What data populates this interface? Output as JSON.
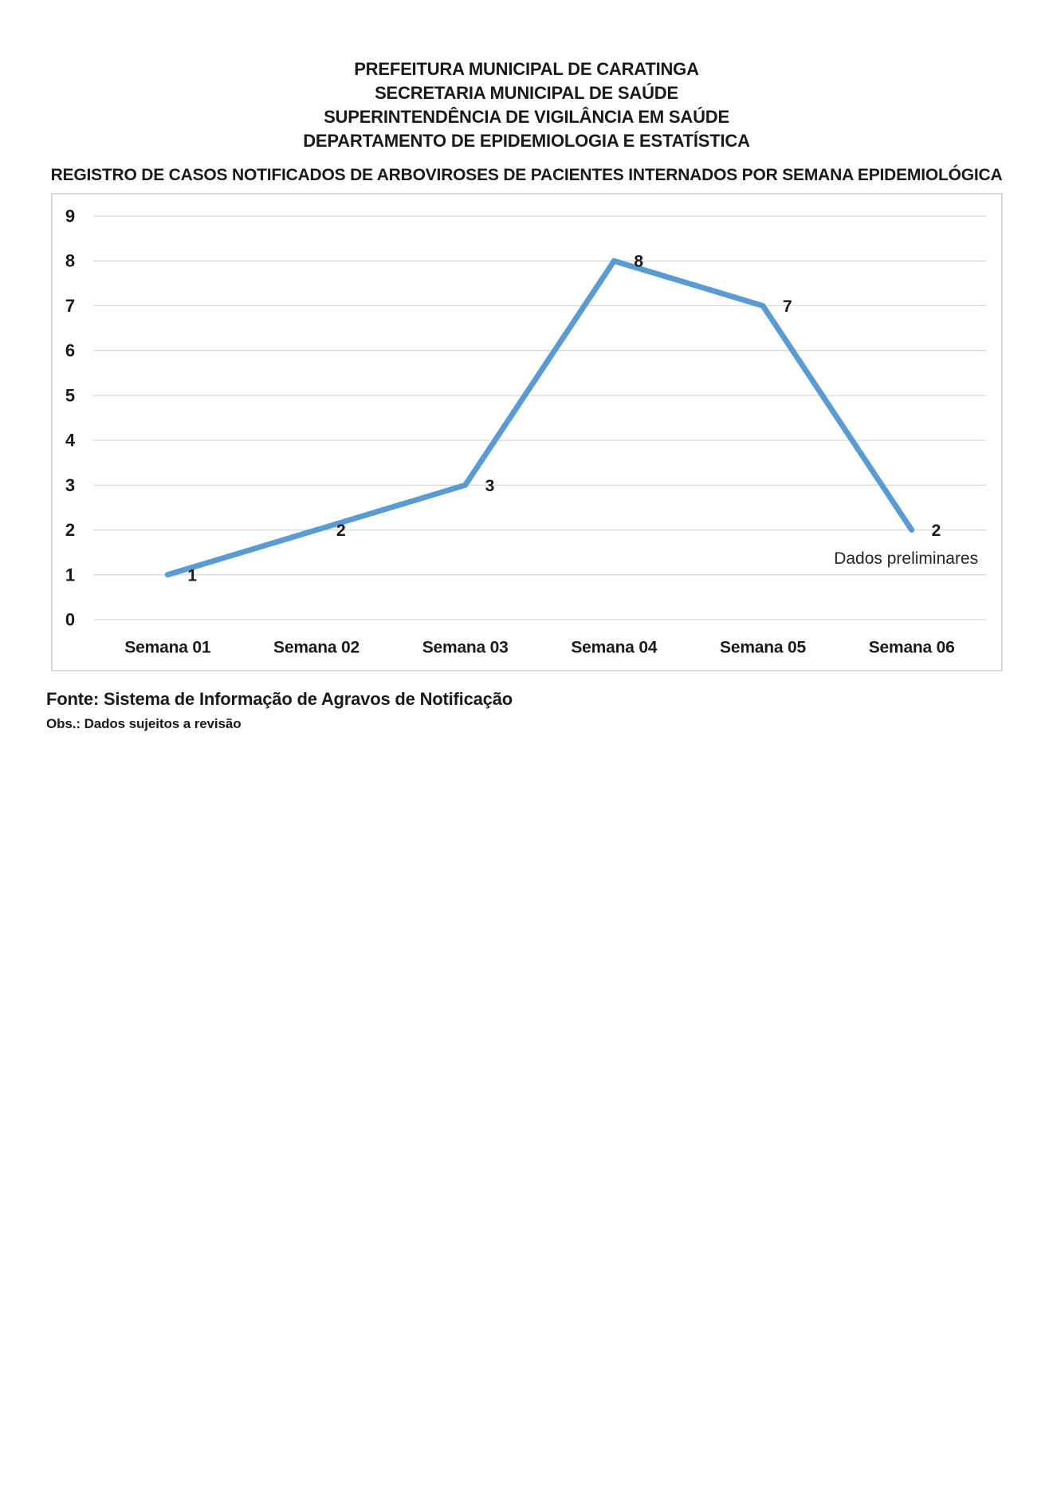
{
  "header": {
    "lines": [
      "PREFEITURA MUNICIPAL DE CARATINGA",
      "SECRETARIA MUNICIPAL DE SAÚDE",
      "SUPERINTENDÊNCIA DE VIGILÂNCIA EM SAÚDE",
      "DEPARTAMENTO DE EPIDEMIOLOGIA E ESTATÍSTICA"
    ]
  },
  "chart_data": {
    "type": "line",
    "title": "REGISTRO DE CASOS NOTIFICADOS DE ARBOVIROSES DE PACIENTES INTERNADOS POR SEMANA EPIDEMIOLÓGICA",
    "categories": [
      "Semana 01",
      "Semana 02",
      "Semana 03",
      "Semana 04",
      "Semana 05",
      "Semana 06"
    ],
    "values": [
      1,
      2,
      3,
      8,
      7,
      2
    ],
    "data_labels": [
      "1",
      "2",
      "3",
      "8",
      "7",
      "2"
    ],
    "annotation": "Dados preliminares",
    "xlabel": "",
    "ylabel": "",
    "ylim": [
      0,
      9
    ],
    "yticks": [
      0,
      1,
      2,
      3,
      4,
      5,
      6,
      7,
      8,
      9
    ],
    "grid": true,
    "legend": "none",
    "line_color": "#5B9BD5",
    "gridline_color": "#d9d9d9",
    "text_color": "#1a1a1a"
  },
  "footer": {
    "fonte": "Fonte: Sistema de Informação de Agravos de Notificação",
    "obs": "Obs.: Dados sujeitos a revisão"
  }
}
